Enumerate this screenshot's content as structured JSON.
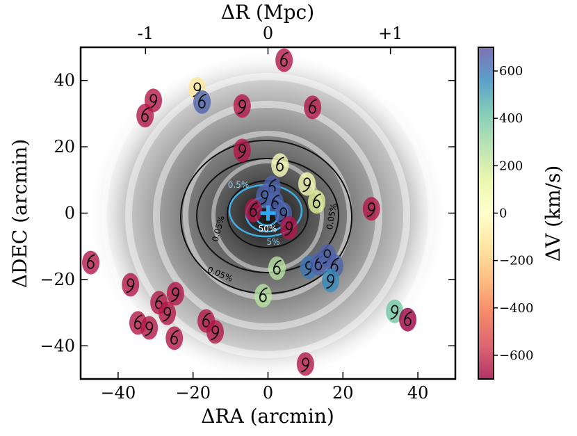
{
  "chart_data": {
    "type": "scatter",
    "x_label": "ΔRA (arcmin)",
    "y_label": "ΔDEC (arcmin)",
    "x2_label": "ΔR (Mpc)",
    "colorbar_label": "ΔV (km/s)",
    "xlim": [
      -50,
      50
    ],
    "ylim": [
      -50,
      50
    ],
    "xticks": [
      {
        "value": -40,
        "label": "−40"
      },
      {
        "value": -20,
        "label": "−20"
      },
      0,
      20,
      40
    ],
    "yticks": [
      {
        "value": -40,
        "label": "−40"
      },
      {
        "value": -20,
        "label": "−20"
      },
      0,
      20,
      40
    ],
    "x2lim": [
      -1.53,
      1.53
    ],
    "x2ticks": [
      {
        "value": -1,
        "label": "-1"
      },
      0,
      {
        "value": 1,
        "label": "+1"
      }
    ],
    "clim": [
      -700,
      700
    ],
    "cticks": [
      {
        "value": -600,
        "label": "−600"
      },
      {
        "value": -400,
        "label": "−400"
      },
      {
        "value": -200,
        "label": "−200"
      },
      0,
      200,
      400,
      600
    ],
    "colormap": [
      "#9e0142",
      "#d53e4f",
      "#f46d43",
      "#fdae61",
      "#fee08b",
      "#ffffbf",
      "#e6f598",
      "#abdda4",
      "#66c2a5",
      "#3288bd",
      "#5e4fa2"
    ],
    "contour_labels": [
      "0.05%",
      "0.05%",
      "0.05%",
      "0.5%",
      "5%",
      "50%"
    ],
    "x": [
      4.3,
      -18.9,
      -17.6,
      -30.6,
      -32.8,
      -6.9,
      11.9,
      -6.9,
      3.2,
      10.4,
      13,
      27.6,
      1.1,
      -0.9,
      1.9,
      4.1,
      -3.9,
      5.6,
      -47.3,
      -36.7,
      2.4,
      10.9,
      13.5,
      15.8,
      17.8,
      16.7,
      -1.3,
      -24.7,
      -29.1,
      -26.9,
      -34.7,
      -31.7,
      -16.5,
      -14.1,
      -25,
      33.8,
      37.3,
      10
    ],
    "values": [
      46.1,
      37.5,
      33.5,
      34,
      29.4,
      32.3,
      31.9,
      18.9,
      14.5,
      8.8,
      3.4,
      1.3,
      7.8,
      5,
      3.1,
      -0.2,
      0.8,
      -4.4,
      -14.9,
      -21.6,
      -16.6,
      -16.4,
      -15.3,
      -12.8,
      -15.9,
      -20.3,
      -24.9,
      -24.3,
      -27,
      -30.2,
      -33.1,
      -34.6,
      -32.5,
      -35.8,
      -37.7,
      -29.6,
      -32.1,
      -45.5
    ],
    "color_values": [
      -650,
      -100,
      650,
      -650,
      -650,
      -650,
      -650,
      -650,
      20,
      50,
      150,
      -650,
      650,
      650,
      650,
      650,
      -650,
      -650,
      -650,
      -650,
      250,
      600,
      650,
      650,
      650,
      550,
      250,
      -650,
      -650,
      -650,
      -650,
      -650,
      -650,
      -650,
      -650,
      400,
      -700,
      -650
    ]
  }
}
